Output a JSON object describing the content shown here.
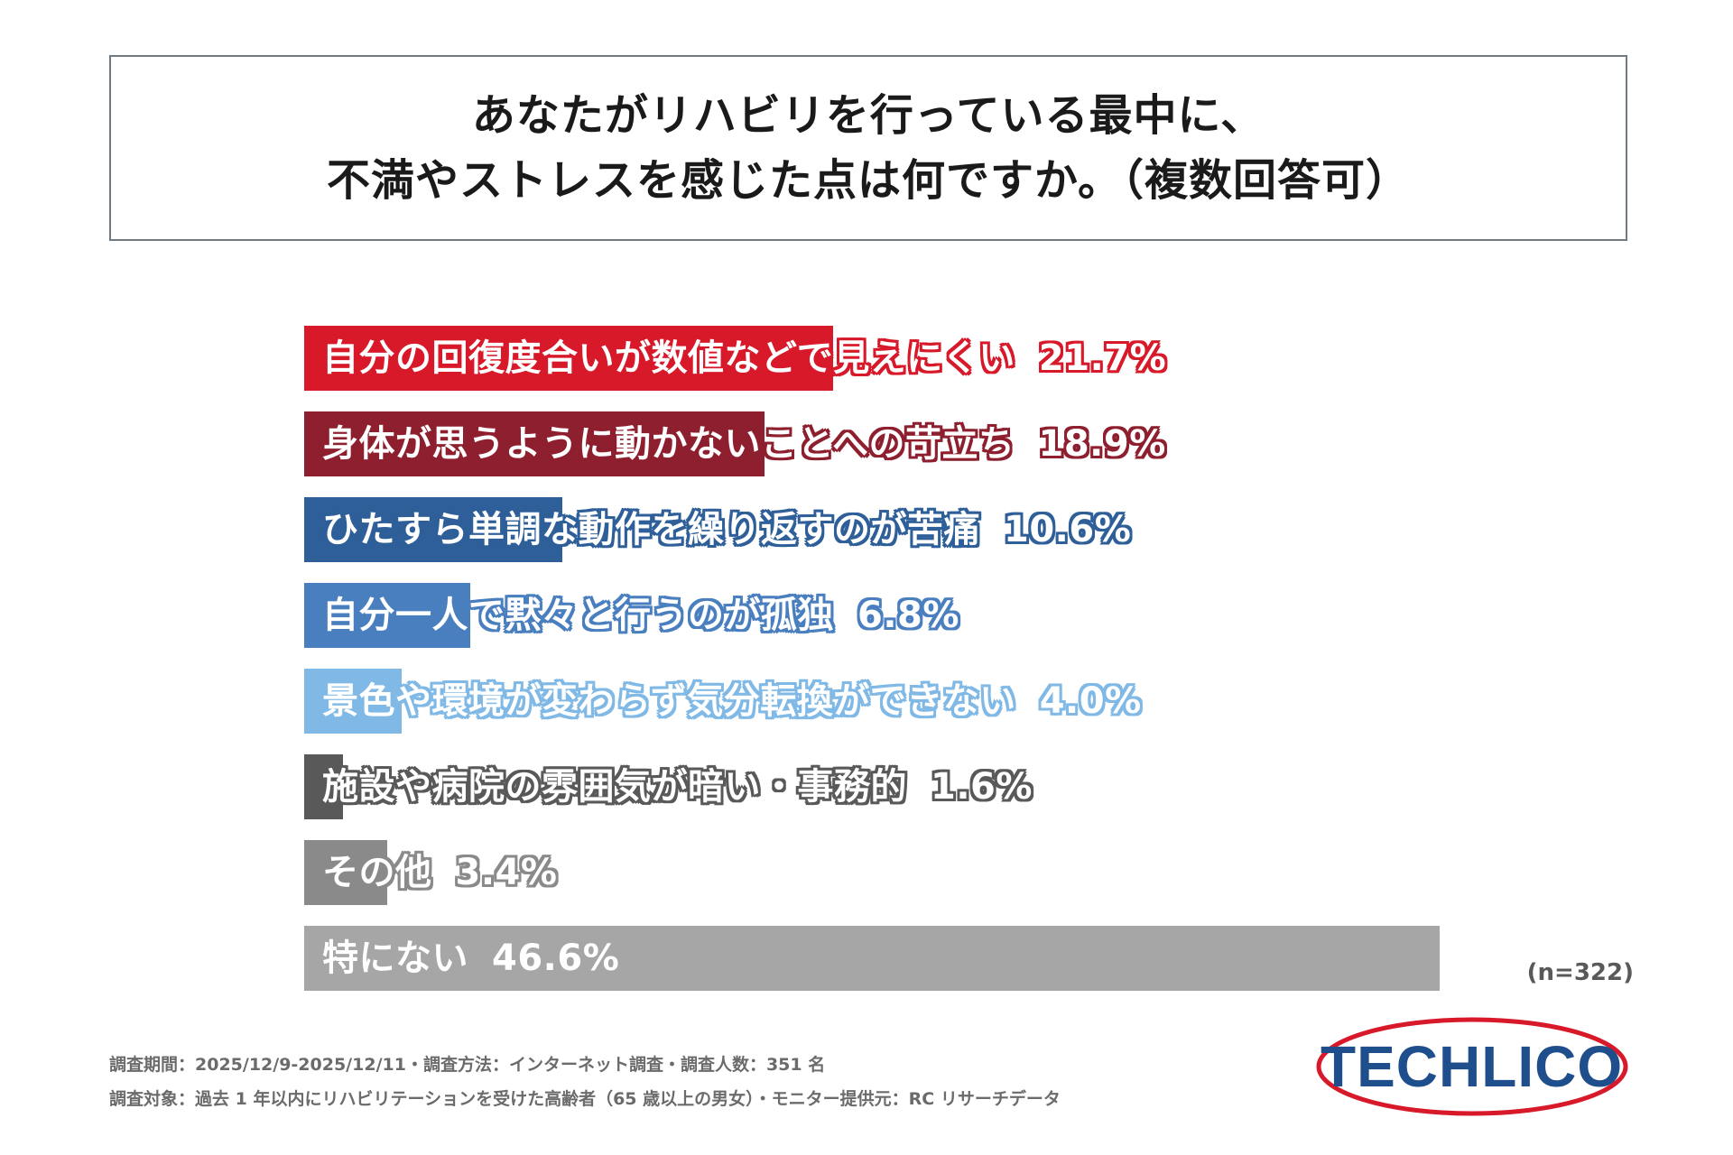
{
  "title": {
    "line1": "あなたがリハビリを行っている最中に、",
    "line2": "不満やストレスを感じた点は何ですか。（複数回答可）"
  },
  "chart_data": {
    "type": "bar",
    "orientation": "horizontal",
    "categories": [
      "自分の回復度合いが数値などで見えにくい",
      "身体が思うように動かないことへの苛立ち",
      "ひたすら単調な動作を繰り返すのが苦痛",
      "自分一人で黙々と行うのが孤独",
      "景色や環境が変わらず気分転換ができない",
      "施設や病院の雰囲気が暗い・事務的",
      "その他",
      "特にない"
    ],
    "values": [
      21.7,
      18.9,
      10.6,
      6.8,
      4.0,
      1.6,
      3.4,
      46.6
    ],
    "value_labels": [
      "21.7%",
      "18.9%",
      "10.6%",
      "6.8%",
      "4.0%",
      "1.6%",
      "3.4%",
      "46.6%"
    ],
    "colors": [
      "#d7192a",
      "#8e1f2e",
      "#2e5f99",
      "#4a7fbf",
      "#80b9e6",
      "#595959",
      "#8a8a8a",
      "#a6a6a6"
    ],
    "xlim": [
      0,
      46.6
    ],
    "grid": false,
    "legend": "none"
  },
  "sample_size": "(n=322)",
  "footnotes": {
    "line1": "調査期間：2025/12/9-2025/12/11・調査方法：インターネット調査・調査人数：351 名",
    "line2": "調査対象：過去 1 年以内にリハビリテーションを受けた高齢者（65 歳以上の男女）・モニター提供元：RC リサーチデータ"
  },
  "logo": {
    "text": "TECHLICO",
    "text_color": "#1f4e8c",
    "ring_color": "#d7192a"
  }
}
